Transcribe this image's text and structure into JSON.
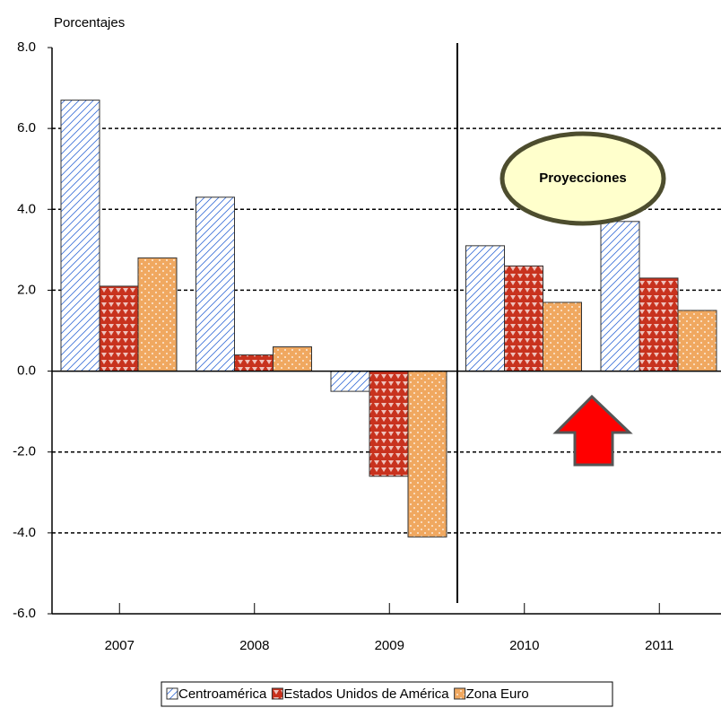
{
  "chart_data": {
    "type": "bar",
    "ylabel": "Porcentajes",
    "annotation": "Proyecciones",
    "categories": [
      "2007",
      "2008",
      "2009",
      "2010",
      "2011"
    ],
    "series": [
      {
        "name": "Centroamérica",
        "color": "#3a6fd8",
        "values": [
          6.7,
          4.3,
          -0.5,
          3.1,
          3.7
        ]
      },
      {
        "name": "Estados Unidos de América",
        "color": "#c8321e",
        "values": [
          2.1,
          0.4,
          -2.6,
          2.6,
          2.3
        ]
      },
      {
        "name": "Zona Euro",
        "color": "#f0a860",
        "values": [
          2.8,
          0.6,
          -4.1,
          1.7,
          1.5
        ]
      }
    ],
    "ylim": [
      -6,
      8
    ],
    "yticks": [
      {
        "value": -6,
        "label": "-6.0"
      },
      {
        "value": -4,
        "label": "-4.0"
      },
      {
        "value": -2,
        "label": "-2.0"
      },
      {
        "value": 0,
        "label": "0.0"
      },
      {
        "value": 2,
        "label": "2.0"
      },
      {
        "value": 4,
        "label": "4.0"
      },
      {
        "value": 6,
        "label": "6.0"
      },
      {
        "value": 8,
        "label": "8.0"
      }
    ],
    "grid": true
  }
}
